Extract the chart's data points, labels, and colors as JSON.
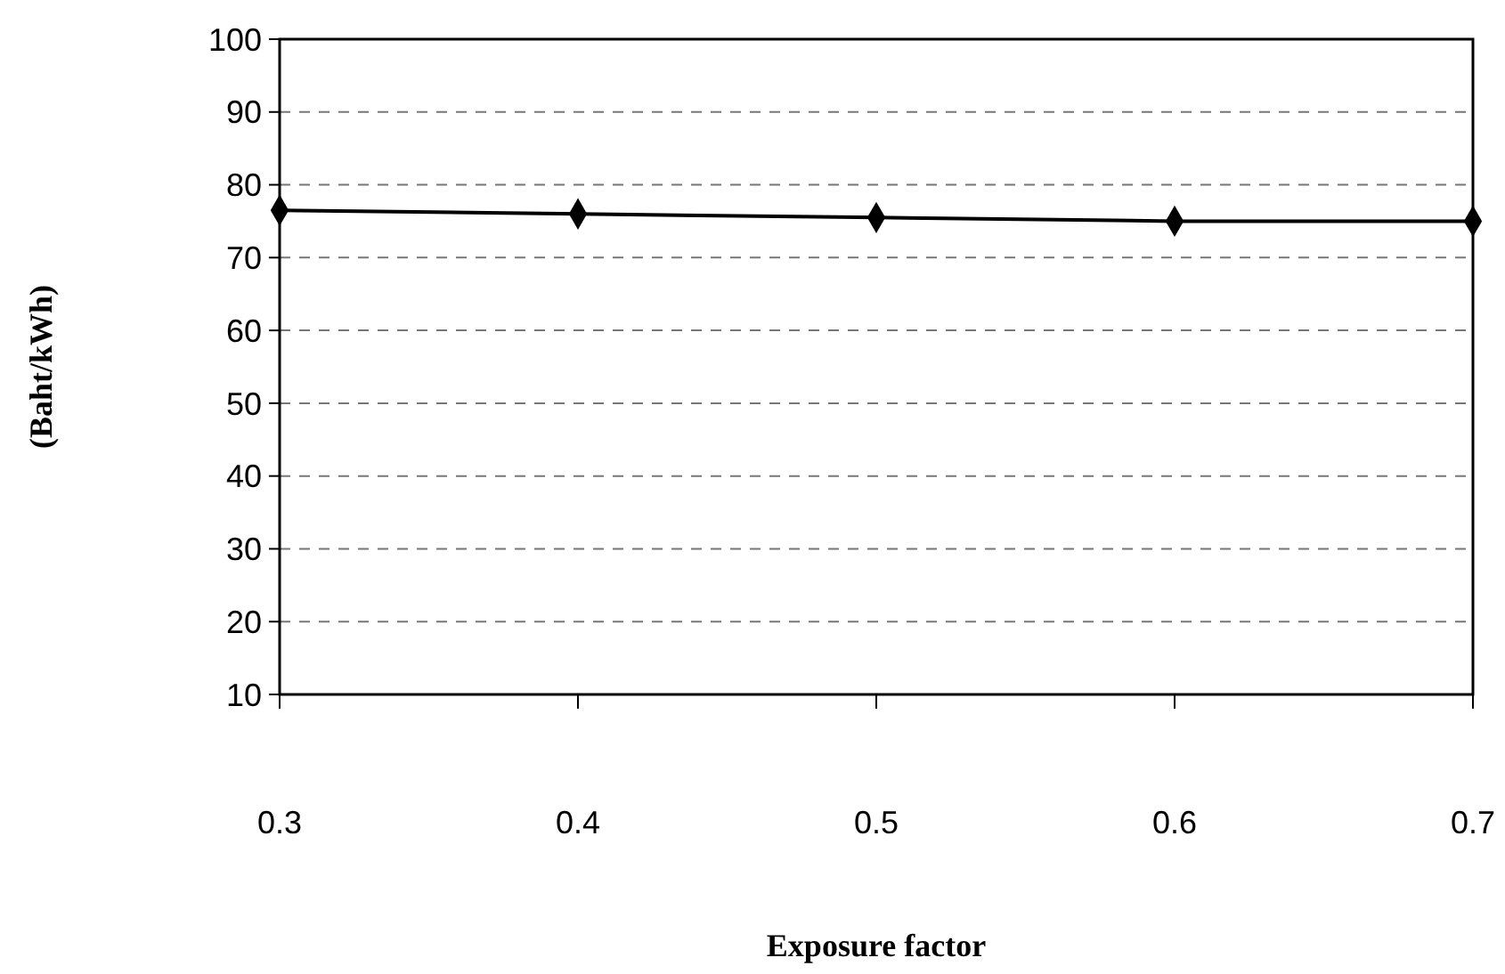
{
  "chart_data": {
    "type": "line",
    "xlabel": "Exposure factor",
    "ylabel": "(Baht/kWh)",
    "x": [
      0.3,
      0.4,
      0.5,
      0.6,
      0.7
    ],
    "series": [
      {
        "color": "#000000",
        "values": [
          76.5,
          76,
          75.5,
          75,
          75
        ]
      }
    ],
    "xlim": [
      0.3,
      0.7
    ],
    "xticks": [
      0.3,
      0.4,
      0.5,
      0.6,
      0.7
    ],
    "ylim": [
      10,
      100
    ],
    "yticks": [
      10,
      20,
      30,
      40,
      50,
      60,
      70,
      80,
      90,
      100
    ],
    "grid": "y",
    "marker": "diamond",
    "line_style": "solid"
  }
}
